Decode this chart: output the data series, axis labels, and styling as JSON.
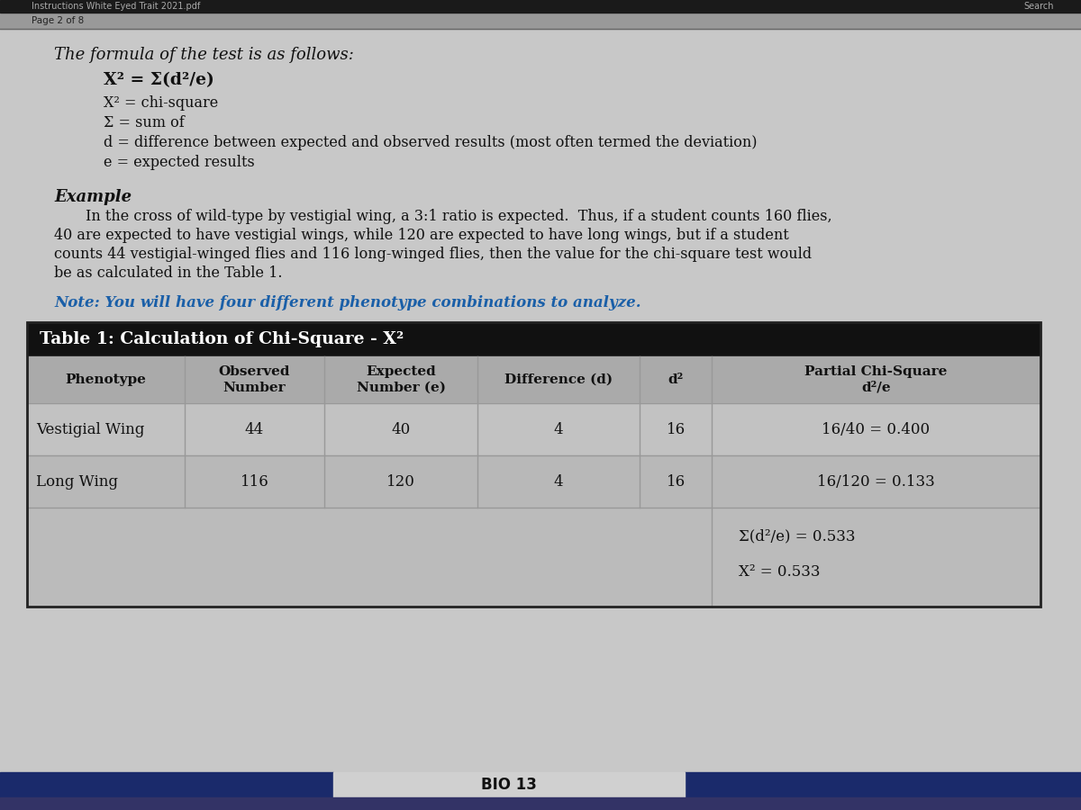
{
  "bg_color": "#c8c8c8",
  "top_strip_color": "#1a1a1a",
  "top_bar_color": "#b0b0b0",
  "top_bar_text": "Instructions White Eyed Trait 2021.pdf",
  "top_bar_search": "Search",
  "page_label": "Page 2 of 8",
  "heading": "The formula of the test is as follows:",
  "formula_line": "X² = Σ(d²/e)",
  "def1": "X² = chi-square",
  "def2": "Σ = sum of",
  "def3": "d = difference between expected and observed results (most often termed the deviation)",
  "def4": "e = expected results",
  "example_label": "Example",
  "example_line1": "In the cross of wild-type by vestigial wing, a 3:1 ratio is expected.  Thus, if a student counts 160 flies,",
  "example_line2": "40 are expected to have vestigial wings, while 120 are expected to have long wings, but if a student",
  "example_line3": "counts 44 vestigial-winged flies and 116 long-winged flies, then the value for the chi-square test would",
  "example_line4": "be as calculated in the Table 1.",
  "note_text": "Note: You will have four different phenotype combinations to analyze.",
  "table_title": "Table 1: Calculation of Chi-Square - X²",
  "table_header_bg": "#111111",
  "col_header1": "Phenotype",
  "col_header2_line1": "Observed",
  "col_header2_line2": "Number",
  "col_header3_line1": "Expected",
  "col_header3_line2": "Number (e)",
  "col_header4": "Difference (d)",
  "col_header5": "d²",
  "col_header6_line1": "Partial Chi-Square",
  "col_header6_line2": "d²/e",
  "row1_phenotype": "Vestigial Wing",
  "row1_observed": "44",
  "row1_expected": "40",
  "row1_diff": "4",
  "row1_d2": "16",
  "row1_partial": "16/40 = 0.400",
  "row2_phenotype": "Long Wing",
  "row2_observed": "116",
  "row2_expected": "120",
  "row2_diff": "4",
  "row2_d2": "16",
  "row2_partial": "16/120 = 0.133",
  "sum_text": "Σ(d²/e) = 0.533",
  "chi_text": "X² = 0.533",
  "footer_text": "BIO 13",
  "footer_bg_side": "#1a2a6b",
  "footer_bg_center": "#c8c8c8",
  "table_border_color": "#222222",
  "grid_color": "#999999",
  "col_header_bg": "#aaaaaa",
  "row1_bg": "#c2c2c2",
  "row2_bg": "#b8b8b8",
  "summary_bg": "#bbbbbb",
  "text_color": "#111111",
  "note_color": "#1a5fa8",
  "white": "#ffffff"
}
